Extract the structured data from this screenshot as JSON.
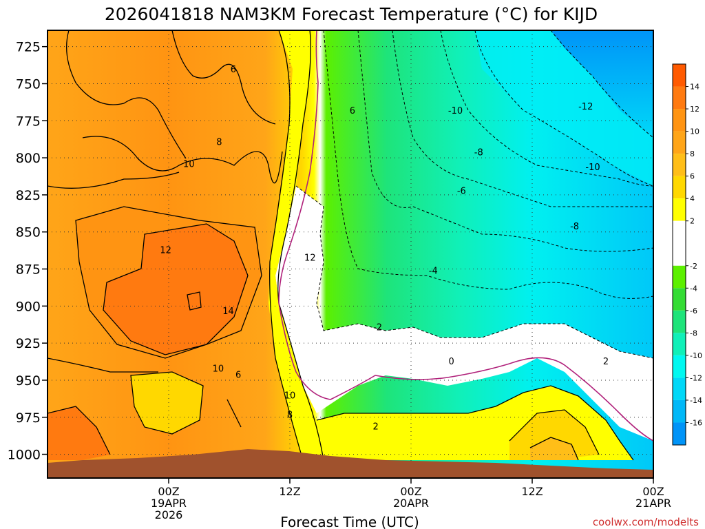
{
  "colors": {
    "grid": "#333333",
    "credit": "#d03030",
    "terrain": "#a0522d",
    "freezing_line": "#b0207a"
  },
  "chart_data": {
    "type": "heatmap",
    "title": "2026041818 NAM3KM Forecast Temperature (°C) for KIJD",
    "xlabel": "Forecast Time (UTC)",
    "ylabel": "",
    "credit": "coolwx.com/modelts",
    "y_axis": {
      "reversed": true,
      "range": [
        1016,
        714
      ],
      "ticks": [
        725,
        750,
        775,
        800,
        825,
        850,
        875,
        900,
        925,
        950,
        975,
        1000
      ]
    },
    "x_axis": {
      "range_hours": [
        -12,
        48
      ],
      "ticks": [
        {
          "hour": 0,
          "label": "00Z",
          "sub": "19APR",
          "sub2": "2026"
        },
        {
          "hour": 12,
          "label": "12Z",
          "sub": "",
          "sub2": ""
        },
        {
          "hour": 24,
          "label": "00Z",
          "sub": "20APR",
          "sub2": ""
        },
        {
          "hour": 36,
          "label": "12Z",
          "sub": "",
          "sub2": ""
        },
        {
          "hour": 48,
          "label": "00Z",
          "sub": "21APR",
          "sub2": ""
        }
      ]
    },
    "colorbar": {
      "ticks": [
        14,
        12,
        10,
        8,
        6,
        4,
        2,
        -2,
        -4,
        -6,
        -8,
        -10,
        -12,
        -14,
        -16
      ],
      "bands": [
        {
          "lo": 14,
          "hi": 16,
          "color": "#ff5a00"
        },
        {
          "lo": 12,
          "hi": 14,
          "color": "#ff7a10"
        },
        {
          "lo": 10,
          "hi": 12,
          "color": "#ff9412"
        },
        {
          "lo": 8,
          "hi": 10,
          "color": "#ffa518"
        },
        {
          "lo": 6,
          "hi": 8,
          "color": "#ffbe18"
        },
        {
          "lo": 4,
          "hi": 6,
          "color": "#ffd800"
        },
        {
          "lo": 2,
          "hi": 4,
          "color": "#ffff00"
        },
        {
          "lo": -2,
          "hi": 2,
          "color": "#ffffff"
        },
        {
          "lo": -4,
          "hi": -2,
          "color": "#5cf000"
        },
        {
          "lo": -6,
          "hi": -4,
          "color": "#34dc34"
        },
        {
          "lo": -8,
          "hi": -6,
          "color": "#1ee47a"
        },
        {
          "lo": -10,
          "hi": -8,
          "color": "#10f0b8"
        },
        {
          "lo": -12,
          "hi": -10,
          "color": "#00f8f0"
        },
        {
          "lo": -14,
          "hi": -12,
          "color": "#00d8f8"
        },
        {
          "lo": -16,
          "hi": -14,
          "color": "#00b8f8"
        },
        {
          "lo": -18,
          "hi": -16,
          "color": "#0094f8"
        }
      ]
    },
    "contour_labels": [
      {
        "value": "6",
        "hour": 6.4,
        "p": 740
      },
      {
        "value": "6",
        "hour": 18.2,
        "p": 768
      },
      {
        "value": "8",
        "hour": 5.0,
        "p": 789
      },
      {
        "value": "10",
        "hour": 2.0,
        "p": 804
      },
      {
        "value": "12",
        "hour": -0.3,
        "p": 862
      },
      {
        "value": "12",
        "hour": 14.0,
        "p": 867
      },
      {
        "value": "14",
        "hour": 5.9,
        "p": 903
      },
      {
        "value": "10",
        "hour": 4.9,
        "p": 942
      },
      {
        "value": "6",
        "hour": 6.9,
        "p": 946
      },
      {
        "value": "10",
        "hour": 12.0,
        "p": 960
      },
      {
        "value": "8",
        "hour": 12.0,
        "p": 973
      },
      {
        "value": "-10",
        "hour": 28.4,
        "p": 768
      },
      {
        "value": "-12",
        "hour": 41.3,
        "p": 765
      },
      {
        "value": "-8",
        "hour": 30.7,
        "p": 796
      },
      {
        "value": "-10",
        "hour": 42.0,
        "p": 806
      },
      {
        "value": "-6",
        "hour": 29.0,
        "p": 822
      },
      {
        "value": "-8",
        "hour": 40.2,
        "p": 846
      },
      {
        "value": "-4",
        "hour": 26.2,
        "p": 876
      },
      {
        "value": "-2",
        "hour": 20.7,
        "p": 914
      },
      {
        "value": "0",
        "hour": 28.0,
        "p": 937
      },
      {
        "value": "2",
        "hour": 43.3,
        "p": 937
      },
      {
        "value": "2",
        "hour": 20.5,
        "p": 981
      }
    ]
  }
}
